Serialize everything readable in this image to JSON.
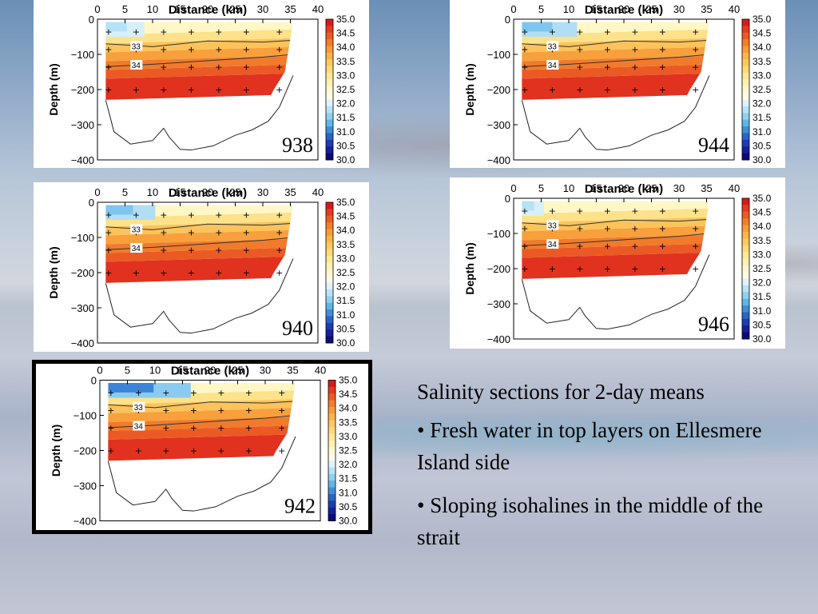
{
  "slide": {
    "caption_title": "Salinity sections for 2-day means",
    "bullets": [
      "• Fresh water in top layers on Ellesmere Island side",
      "• Sloping isohalines in the middle of the strait"
    ]
  },
  "colorbar": {
    "labels": [
      "35.0",
      "34.5",
      "34.0",
      "33.5",
      "33.0",
      "32.5",
      "32.0",
      "31.5",
      "31.0",
      "30.5",
      "30.0"
    ],
    "colors": [
      "#d7191c",
      "#e43a1f",
      "#ec5b24",
      "#f47d2a",
      "#f89b38",
      "#fbb44a",
      "#fcc860",
      "#fdd97a",
      "#fde897",
      "#fef1b2",
      "#fff8cf",
      "#fffbe3",
      "#e0f3fb",
      "#b9e3f5",
      "#8fd0ef",
      "#62b6e4",
      "#3f8fd6",
      "#2a64c6",
      "#1d3cb0",
      "#161f9a",
      "#0d0a78"
    ],
    "color_note": "35.0 red to 30.0 dark blue"
  },
  "chart_data": [
    {
      "id": "938",
      "type": "heatmap",
      "label": "938",
      "title": "Distance (km)",
      "xlabel": "Distance (km)",
      "ylabel": "Depth (m)",
      "xlim": [
        0,
        40
      ],
      "ylim": [
        0,
        -400
      ],
      "xticks": [
        "0",
        "5",
        "10",
        "15",
        "20",
        "25",
        "30",
        "35",
        "40"
      ],
      "yticks": [
        "0",
        "−100",
        "−200",
        "−300",
        "−400"
      ],
      "contour_labels": [
        "33",
        "34"
      ],
      "fresh_extent_km": 7,
      "fresh_level": "blue-light",
      "highlighted": false
    },
    {
      "id": "940",
      "type": "heatmap",
      "label": "940",
      "title": "Distance (km)",
      "xlabel": "Distance (km)",
      "ylabel": "Depth (m)",
      "xlim": [
        0,
        40
      ],
      "ylim": [
        0,
        -400
      ],
      "xticks": [
        "0",
        "5",
        "10",
        "15",
        "20",
        "25",
        "30",
        "35",
        "40"
      ],
      "yticks": [
        "0",
        "−100",
        "−200",
        "−300",
        "−400"
      ],
      "contour_labels": [
        "33",
        "34"
      ],
      "fresh_extent_km": 9,
      "fresh_level": "blue-medium",
      "highlighted": false
    },
    {
      "id": "942",
      "type": "heatmap",
      "label": "942",
      "title": "Distance (km)",
      "xlabel": "Distance (km)",
      "ylabel": "Depth (m)",
      "xlim": [
        0,
        40
      ],
      "ylim": [
        0,
        -400
      ],
      "xticks": [
        "0",
        "5",
        "10",
        "15",
        "20",
        "25",
        "30",
        "35",
        "40"
      ],
      "yticks": [
        "0",
        "−100",
        "−200",
        "−300",
        "−400"
      ],
      "contour_labels": [
        "33",
        "34"
      ],
      "fresh_extent_km": 15,
      "fresh_level": "blue-strong",
      "highlighted": true
    },
    {
      "id": "944",
      "type": "heatmap",
      "label": "944",
      "title": "Distance (km)",
      "xlabel": "Distance (km)",
      "ylabel": "Depth (m)",
      "xlim": [
        0,
        40
      ],
      "ylim": [
        0,
        -400
      ],
      "xticks": [
        "0",
        "5",
        "10",
        "15",
        "20",
        "25",
        "30",
        "35",
        "40"
      ],
      "yticks": [
        "0",
        "−100",
        "−200",
        "−300",
        "−400"
      ],
      "contour_labels": [
        "33",
        "34"
      ],
      "fresh_extent_km": 10,
      "fresh_level": "blue-medium",
      "highlighted": false
    },
    {
      "id": "946",
      "type": "heatmap",
      "label": "946",
      "title": "Distance (km)",
      "xlabel": "Distance (km)",
      "ylabel": "Depth (m)",
      "xlim": [
        0,
        40
      ],
      "ylim": [
        0,
        -400
      ],
      "xticks": [
        "0",
        "5",
        "10",
        "15",
        "20",
        "25",
        "30",
        "35",
        "40"
      ],
      "yticks": [
        "0",
        "−100",
        "−200",
        "−300",
        "−400"
      ],
      "contour_labels": [
        "33",
        "34"
      ],
      "fresh_extent_km": 4,
      "fresh_level": "blue-light",
      "highlighted": false
    }
  ]
}
